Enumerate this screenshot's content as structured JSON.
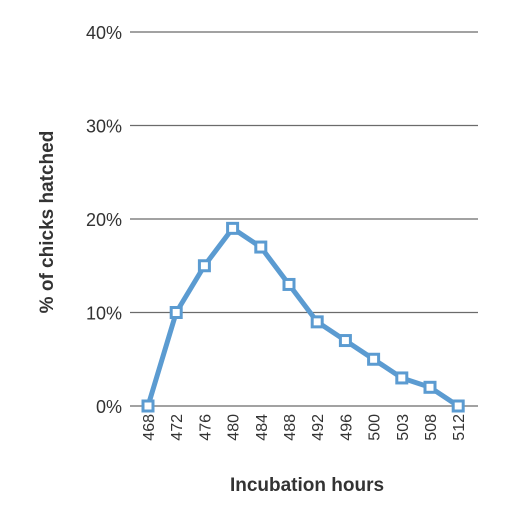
{
  "chart_data": {
    "type": "line",
    "xlabel": "Incubation hours",
    "ylabel": "% of chicks hatched",
    "categories": [
      "468",
      "472",
      "476",
      "480",
      "484",
      "488",
      "492",
      "496",
      "500",
      "503",
      "508",
      "512"
    ],
    "series": [
      {
        "values": [
          0,
          10,
          15,
          19,
          17,
          13,
          9,
          7,
          5,
          3,
          2,
          0
        ]
      }
    ],
    "ylim": [
      0,
      40
    ],
    "yticks": [
      0,
      10,
      20,
      30,
      40
    ],
    "ytick_labels": [
      "0%",
      "10%",
      "20%",
      "30%",
      "40%"
    ],
    "grid": true,
    "colors": {
      "line": "#5b9bd1",
      "marker_fill": "#ffffff"
    }
  }
}
